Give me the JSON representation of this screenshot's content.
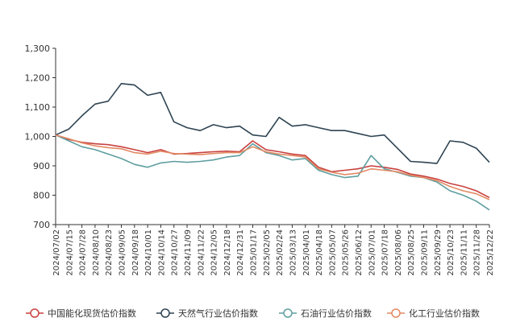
{
  "chart_data": {
    "type": "line",
    "ylim": [
      700,
      1300
    ],
    "yticks": [
      700,
      800,
      900,
      "1,000",
      "1,100",
      "1,200",
      "1,300"
    ],
    "ytick_values": [
      700,
      800,
      900,
      1000,
      1100,
      1200,
      1300
    ],
    "x_labels": [
      "2024/07/02",
      "2024/07/15",
      "2024/07/28",
      "2024/08/10",
      "2024/08/23",
      "2024/09/05",
      "2024/09/18",
      "2024/10/01",
      "2024/10/14",
      "2024/10/27",
      "2024/11/09",
      "2024/11/22",
      "2024/12/05",
      "2024/12/18",
      "2024/12/31",
      "2025/01/17",
      "2025/02/05",
      "2025/02/24",
      "2025/03/13",
      "2025/04/01",
      "2025/04/18",
      "2025/05/07",
      "2025/05/26",
      "2025/06/12",
      "2025/07/01",
      "2025/07/18",
      "2025/08/06",
      "2025/08/25",
      "2025/09/11",
      "2025/09/29",
      "2025/10/23",
      "2025/11/11",
      "2025/11/28",
      "2025/12/22"
    ],
    "legend_position": "bottom",
    "grid": {
      "x": false,
      "y": false
    },
    "series": [
      {
        "name": "中国能化现货估价指数",
        "color": "#c8413f",
        "values": [
          1005,
          990,
          980,
          975,
          972,
          965,
          955,
          945,
          955,
          940,
          942,
          945,
          948,
          950,
          948,
          985,
          955,
          948,
          940,
          935,
          895,
          880,
          885,
          890,
          900,
          895,
          888,
          872,
          865,
          855,
          840,
          830,
          815,
          792
        ]
      },
      {
        "name": "天然气行业估价指数",
        "color": "#2e4453",
        "values": [
          1005,
          1025,
          1070,
          1110,
          1120,
          1180,
          1175,
          1140,
          1150,
          1050,
          1030,
          1020,
          1040,
          1030,
          1035,
          1005,
          1000,
          1065,
          1035,
          1040,
          1030,
          1020,
          1020,
          1010,
          1000,
          1005,
          960,
          915,
          912,
          908,
          985,
          980,
          960,
          912
        ]
      },
      {
        "name": "石油行业估价指数",
        "color": "#5f9ea0",
        "values": [
          1005,
          985,
          965,
          955,
          940,
          925,
          905,
          895,
          910,
          915,
          912,
          915,
          920,
          930,
          935,
          975,
          945,
          935,
          920,
          925,
          885,
          870,
          860,
          865,
          935,
          890,
          878,
          865,
          860,
          845,
          815,
          800,
          780,
          750
        ]
      },
      {
        "name": "化工行业估价指数",
        "color": "#e38a64",
        "values": [
          1005,
          992,
          978,
          968,
          962,
          958,
          945,
          940,
          950,
          942,
          940,
          938,
          942,
          945,
          945,
          965,
          948,
          940,
          935,
          930,
          890,
          878,
          870,
          875,
          890,
          885,
          880,
          868,
          860,
          850,
          830,
          815,
          805,
          785
        ]
      }
    ]
  }
}
